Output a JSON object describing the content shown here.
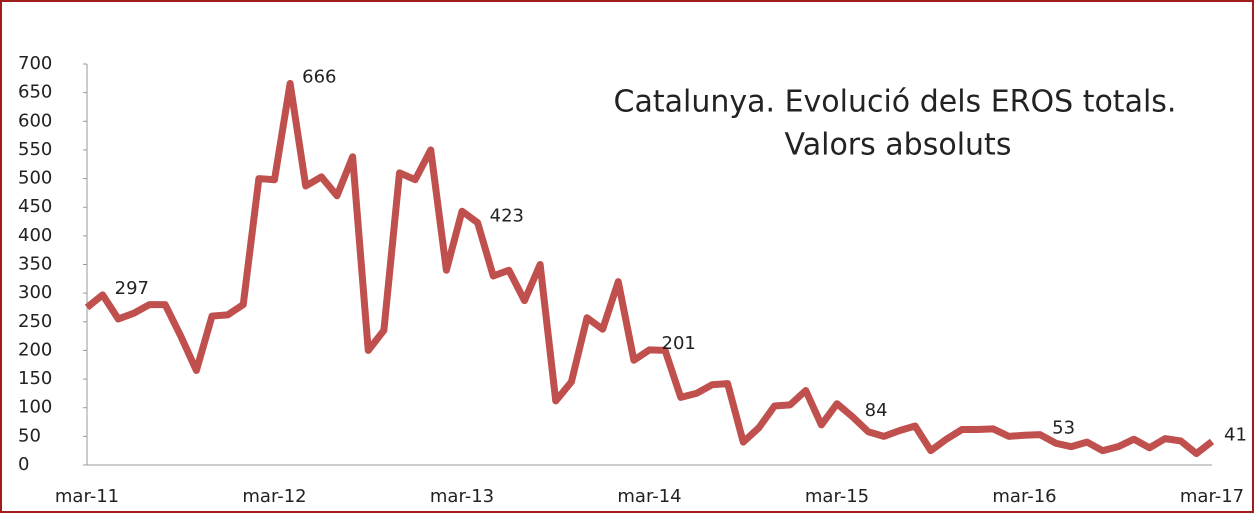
{
  "chart_data": {
    "type": "line",
    "title": "Catalunya. Evolució dels EROS totals.",
    "subtitle": "Valors absoluts",
    "categories": [
      "mar-11",
      null,
      null,
      null,
      null,
      null,
      null,
      null,
      null,
      null,
      null,
      null,
      "mar-12",
      null,
      null,
      null,
      null,
      null,
      null,
      null,
      null,
      null,
      null,
      null,
      "mar-13",
      null,
      null,
      null,
      null,
      null,
      null,
      null,
      null,
      null,
      null,
      null,
      "mar-14",
      null,
      null,
      null,
      null,
      null,
      null,
      null,
      null,
      null,
      null,
      null,
      "mar-15",
      null,
      null,
      null,
      null,
      null,
      null,
      null,
      null,
      null,
      null,
      null,
      "mar-16",
      null,
      null,
      null,
      null,
      null,
      null,
      null,
      null,
      null,
      null,
      null,
      "mar-17"
    ],
    "series": [
      {
        "name": "EROS",
        "color": "#c0504d",
        "values": [
          275,
          297,
          255,
          265,
          280,
          280,
          225,
          165,
          260,
          262,
          280,
          500,
          498,
          666,
          487,
          503,
          470,
          538,
          200,
          235,
          510,
          498,
          550,
          340,
          443,
          423,
          330,
          340,
          287,
          350,
          112,
          145,
          257,
          237,
          320,
          183,
          201,
          200,
          118,
          125,
          140,
          142,
          40,
          65,
          103,
          105,
          130,
          70,
          107,
          84,
          58,
          50,
          60,
          68,
          25,
          45,
          62,
          62,
          63,
          50,
          52,
          53,
          38,
          32,
          40,
          25,
          32,
          45,
          30,
          46,
          42,
          20,
          41
        ],
        "labels": [
          null,
          297,
          null,
          null,
          null,
          null,
          null,
          null,
          null,
          null,
          null,
          null,
          null,
          666,
          null,
          null,
          null,
          null,
          null,
          null,
          null,
          null,
          null,
          null,
          null,
          423,
          null,
          null,
          null,
          null,
          null,
          null,
          null,
          null,
          null,
          null,
          201,
          null,
          null,
          null,
          null,
          null,
          null,
          null,
          null,
          null,
          null,
          null,
          null,
          84,
          null,
          null,
          null,
          null,
          null,
          null,
          null,
          null,
          null,
          null,
          null,
          53,
          null,
          null,
          null,
          null,
          null,
          null,
          null,
          null,
          null,
          null,
          41
        ]
      }
    ],
    "ylim": [
      0,
      700
    ],
    "yticks": [
      0,
      50,
      100,
      150,
      200,
      250,
      300,
      350,
      400,
      450,
      500,
      550,
      600,
      650,
      700
    ]
  }
}
